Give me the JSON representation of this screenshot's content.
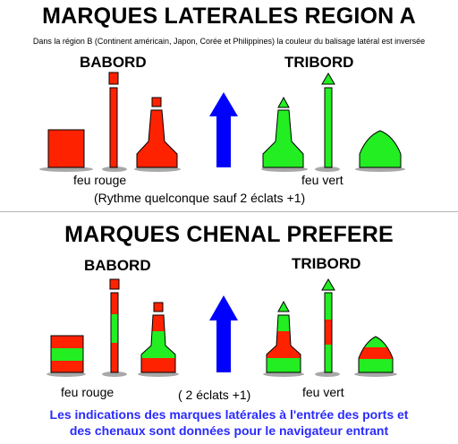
{
  "section_lateral": {
    "title": "MARQUES LATERALES REGION A",
    "note": "Dans la région B (Continent américain, Japon, Corée et Philippines) la couleur du balisage latéral est inversée",
    "port_label": "BABORD",
    "starboard_label": "TRIBORD",
    "port_light": "feu rouge",
    "starboard_light": "feu vert",
    "rhythm": "(Rythme quelconque sauf 2 éclats +1)"
  },
  "section_channel": {
    "title": "MARQUES CHENAL PREFERE",
    "port_label": "BABORD",
    "starboard_label": "TRIBORD",
    "port_light": "feu rouge",
    "starboard_light": "feu vert",
    "rhythm": "( 2 éclats +1)"
  },
  "footer": {
    "line1": "Les indications des marques latérales à l'entrée des ports et",
    "line2": "des chenaux sont données pour le navigateur entrant"
  },
  "colors": {
    "red": "#ff2200",
    "green": "#22ee22",
    "arrow": "#0000ff",
    "footer_text": "#2a2aff"
  }
}
